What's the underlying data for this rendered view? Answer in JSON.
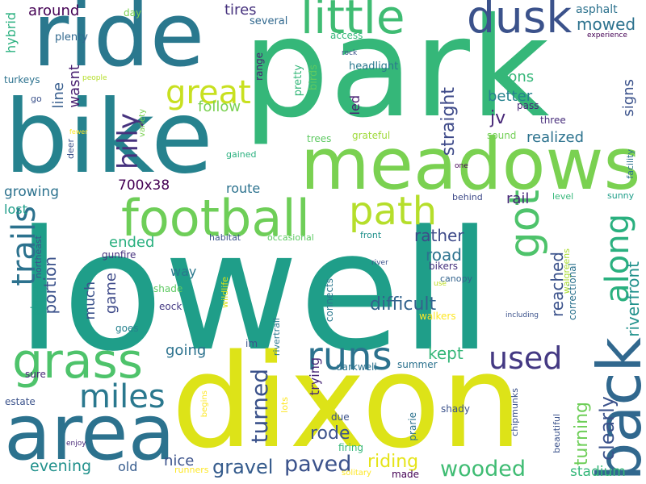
{
  "background": "#ffffff",
  "palette": [
    "#440154",
    "#3b528b",
    "#21918c",
    "#5ec962",
    "#fde725"
  ],
  "words": [
    {
      "text": "lowell",
      "color": "#1f9e89"
    },
    {
      "text": "park",
      "color": "#35b779"
    },
    {
      "text": "dixon",
      "color": "#dde318"
    },
    {
      "text": "bike",
      "color": "#26828e"
    },
    {
      "text": "ride",
      "color": "#2a788e"
    },
    {
      "text": "meadows",
      "color": "#7ad151"
    },
    {
      "text": "football",
      "color": "#6ece58"
    },
    {
      "text": "area",
      "color": "#2c728e"
    },
    {
      "text": "grass",
      "color": "#4ec36b"
    },
    {
      "text": "back",
      "color": "#31688e"
    },
    {
      "text": "little",
      "color": "#3fbc73"
    },
    {
      "text": "dusk",
      "color": "#3b528b"
    },
    {
      "text": "path",
      "color": "#b5de2b"
    },
    {
      "text": "got",
      "color": "#4ec36b"
    },
    {
      "text": "along",
      "color": "#2ab07f"
    },
    {
      "text": "trails",
      "color": "#2c728e"
    },
    {
      "text": "great",
      "color": "#c8e020"
    },
    {
      "text": "runs",
      "color": "#2c728e"
    },
    {
      "text": "used",
      "color": "#443983"
    },
    {
      "text": "miles",
      "color": "#2a788e"
    },
    {
      "text": "wooded",
      "color": "#3fbc73"
    },
    {
      "text": "paved",
      "color": "#3b528b"
    },
    {
      "text": "hilly",
      "color": "#46327e"
    },
    {
      "text": "gravel",
      "color": "#365c8d"
    },
    {
      "text": "mowed",
      "color": "#2c728e"
    },
    {
      "text": "riverfront",
      "color": "#21918c"
    },
    {
      "text": "turned",
      "color": "#3b528b"
    },
    {
      "text": "clearly",
      "color": "#3b528b"
    },
    {
      "text": "riding",
      "color": "#e5e419"
    },
    {
      "text": "difficult",
      "color": "#33638d"
    },
    {
      "text": "rode",
      "color": "#3b528b"
    },
    {
      "text": "kept",
      "color": "#35b779"
    },
    {
      "text": "reached",
      "color": "#3b528b"
    },
    {
      "text": "road",
      "color": "#2c728e"
    },
    {
      "text": "turning",
      "color": "#6ece58"
    },
    {
      "text": "straight",
      "color": "#3e4a89"
    },
    {
      "text": "wasnt",
      "color": "#481f70"
    },
    {
      "text": "line",
      "color": "#365c8d"
    },
    {
      "text": "growing",
      "color": "#2c728e"
    },
    {
      "text": "ended",
      "color": "#2ab07f"
    },
    {
      "text": "portion",
      "color": "#3b528b"
    },
    {
      "text": "going",
      "color": "#2c728e"
    },
    {
      "text": "evening",
      "color": "#21918c"
    },
    {
      "text": "nice",
      "color": "#3b528b"
    },
    {
      "text": "rather",
      "color": "#3e4a89"
    },
    {
      "text": "rail",
      "color": "#482878"
    },
    {
      "text": "realized",
      "color": "#2c728e"
    },
    {
      "text": "better",
      "color": "#26828e"
    },
    {
      "text": "sons",
      "color": "#35b779"
    },
    {
      "text": "signs",
      "color": "#3b528b"
    },
    {
      "text": "tires",
      "color": "#46327e"
    },
    {
      "text": "follow",
      "color": "#7ad151"
    },
    {
      "text": "700x38",
      "color": "#440154"
    },
    {
      "text": "route",
      "color": "#2c728e"
    },
    {
      "text": "way",
      "color": "#2a788e"
    },
    {
      "text": "game",
      "color": "#3e4a89"
    },
    {
      "text": "much",
      "color": "#3b528b"
    },
    {
      "text": "old",
      "color": "#365c8d"
    },
    {
      "text": "stadium",
      "color": "#35b779"
    },
    {
      "text": "jv",
      "color": "#482878"
    },
    {
      "text": "around",
      "color": "#440154"
    },
    {
      "text": "lost",
      "color": "#1f9e89"
    },
    {
      "text": "trying",
      "color": "#482878"
    },
    {
      "text": "led",
      "color": "#481f70"
    },
    {
      "text": "hybrid",
      "color": "#2ab07f"
    },
    {
      "text": "asphalt",
      "color": "#2c728e"
    },
    {
      "text": "headlight",
      "color": "#2a788e"
    },
    {
      "text": "several",
      "color": "#31688e"
    },
    {
      "text": "access",
      "color": "#35b779"
    },
    {
      "text": "plenty",
      "color": "#31688e"
    },
    {
      "text": "turkeys",
      "color": "#2c728e"
    },
    {
      "text": "pretty",
      "color": "#35b779"
    },
    {
      "text": "birds",
      "color": "#5ec962"
    },
    {
      "text": "range",
      "color": "#481f70"
    },
    {
      "text": "experience",
      "color": "#440154"
    },
    {
      "text": "pass",
      "color": "#482878"
    },
    {
      "text": "three",
      "color": "#472d7b"
    },
    {
      "text": "sound",
      "color": "#73d056"
    },
    {
      "text": "grateful",
      "color": "#9fda3a"
    },
    {
      "text": "trees",
      "color": "#5ec962"
    },
    {
      "text": "canopy",
      "color": "#33638d"
    },
    {
      "text": "bikers",
      "color": "#46327e"
    },
    {
      "text": "walgreens",
      "color": "#aadc32"
    },
    {
      "text": "front",
      "color": "#21918c"
    },
    {
      "text": "behind",
      "color": "#3e4a89"
    },
    {
      "text": "level",
      "color": "#35b779"
    },
    {
      "text": "sunny",
      "color": "#1f9e89"
    },
    {
      "text": "facility",
      "color": "#2c728e"
    },
    {
      "text": "habitat",
      "color": "#3b528b"
    },
    {
      "text": "occasional",
      "color": "#5ec962"
    },
    {
      "text": "northeast",
      "color": "#3b528b"
    },
    {
      "text": "gunfire",
      "color": "#46327e"
    },
    {
      "text": "shade",
      "color": "#5ec962"
    },
    {
      "text": "wildlife",
      "color": "#d8e219"
    },
    {
      "text": "eock",
      "color": "#443983"
    },
    {
      "text": "correctional",
      "color": "#2c728e"
    },
    {
      "text": "walkers",
      "color": "#fde725"
    },
    {
      "text": "connects",
      "color": "#2a788e"
    },
    {
      "text": "rivertrail",
      "color": "#2a788e"
    },
    {
      "text": "im",
      "color": "#3b528b"
    },
    {
      "text": "darkwell",
      "color": "#2c728e"
    },
    {
      "text": "summer",
      "color": "#2c728e"
    },
    {
      "text": "places",
      "color": "#1f9e89"
    },
    {
      "text": "goes",
      "color": "#26828e"
    },
    {
      "text": "estate",
      "color": "#3b528b"
    },
    {
      "text": "sure",
      "color": "#482878"
    },
    {
      "text": "due",
      "color": "#3b528b"
    },
    {
      "text": "shady",
      "color": "#3b528b"
    },
    {
      "text": "prarie",
      "color": "#2c728e"
    },
    {
      "text": "firing",
      "color": "#35b779"
    },
    {
      "text": "chipmunks",
      "color": "#3b528b"
    },
    {
      "text": "beautiful",
      "color": "#3b528b"
    },
    {
      "text": "made",
      "color": "#440154"
    },
    {
      "text": "lots",
      "color": "#fde725"
    },
    {
      "text": "begins",
      "color": "#fde725"
    },
    {
      "text": "runners",
      "color": "#fde725"
    },
    {
      "text": "solitary",
      "color": "#fde725"
    },
    {
      "text": "enjoy",
      "color": "#482878"
    },
    {
      "text": "deer",
      "color": "#3b528b"
    },
    {
      "text": "variety",
      "color": "#7ad151"
    },
    {
      "text": "fewer",
      "color": "#fde725"
    },
    {
      "text": "gained",
      "color": "#2ab07f"
    },
    {
      "text": "one",
      "color": "#440154"
    },
    {
      "text": "day",
      "color": "#7ad151"
    },
    {
      "text": "people",
      "color": "#b5de2b"
    },
    {
      "text": "go",
      "color": "#3b528b"
    },
    {
      "text": "rock",
      "color": "#3b528b"
    },
    {
      "text": "river",
      "color": "#3b528b"
    },
    {
      "text": "use",
      "color": "#bddf26"
    },
    {
      "text": "including",
      "color": "#3b528b"
    }
  ]
}
